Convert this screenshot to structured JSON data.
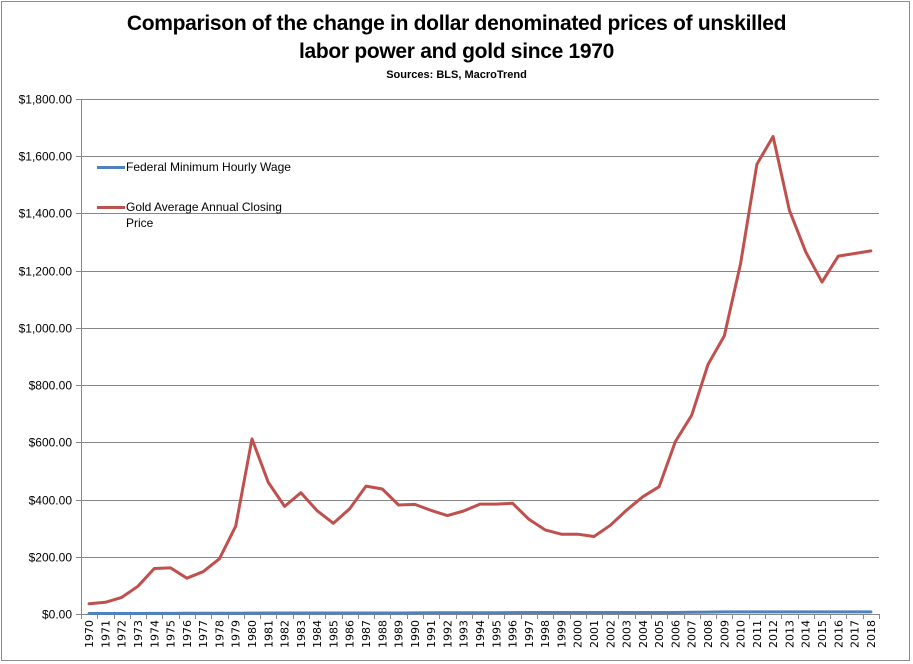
{
  "chart_data": {
    "type": "line",
    "title": "Comparison of the change in dollar denominated prices of unskilled labor power and gold since 1970",
    "title_lines": [
      "Comparison of the change in dollar denominated prices of unskilled",
      "labor power and gold since 1970"
    ],
    "subtitle": "Sources: BLS, MacroTrend",
    "xlabel": "",
    "ylabel": "",
    "ylim": [
      0,
      1800
    ],
    "ytick_step": 200,
    "ytick_labels": [
      "$0.00",
      "$200.00",
      "$400.00",
      "$600.00",
      "$800.00",
      "$1,000.00",
      "$1,200.00",
      "$1,400.00",
      "$1,600.00",
      "$1,800.00"
    ],
    "grid": "horizontal",
    "legend_position": "top-left",
    "categories": [
      "1970",
      "1971",
      "1972",
      "1973",
      "1974",
      "1975",
      "1976",
      "1977",
      "1978",
      "1979",
      "1980",
      "1981",
      "1982",
      "1983",
      "1984",
      "1985",
      "1986",
      "1987",
      "1988",
      "1989",
      "1990",
      "1991",
      "1992",
      "1993",
      "1994",
      "1995",
      "1996",
      "1997",
      "1998",
      "1999",
      "2000",
      "2001",
      "2002",
      "2003",
      "2004",
      "2005",
      "2006",
      "2007",
      "2008",
      "2009",
      "2010",
      "2011",
      "2012",
      "2013",
      "2014",
      "2015",
      "2016",
      "2017",
      "2018"
    ],
    "series": [
      {
        "name": "Federal Minimum Hourly Wage",
        "color": "#4f81bd",
        "values": [
          1.6,
          1.6,
          1.6,
          1.6,
          2.0,
          2.1,
          2.3,
          2.3,
          2.65,
          2.9,
          3.1,
          3.35,
          3.35,
          3.35,
          3.35,
          3.35,
          3.35,
          3.35,
          3.35,
          3.35,
          3.8,
          4.25,
          4.25,
          4.25,
          4.25,
          4.25,
          4.75,
          5.15,
          5.15,
          5.15,
          5.15,
          5.15,
          5.15,
          5.15,
          5.15,
          5.15,
          5.15,
          5.85,
          6.55,
          7.25,
          7.25,
          7.25,
          7.25,
          7.25,
          7.25,
          7.25,
          7.25,
          7.25,
          7.25
        ]
      },
      {
        "name": "Gold Average Annual Closing Price",
        "color": "#c0504d",
        "values": [
          36,
          41,
          58,
          97,
          159,
          161,
          125,
          148,
          193,
          307,
          612,
          460,
          376,
          424,
          361,
          317,
          368,
          447,
          437,
          381,
          383,
          362,
          344,
          360,
          384,
          384,
          387,
          331,
          294,
          279,
          279,
          271,
          310,
          363,
          410,
          445,
          603,
          695,
          872,
          972,
          1225,
          1572,
          1669,
          1411,
          1266,
          1160,
          1251,
          1260,
          1269
        ]
      }
    ]
  }
}
